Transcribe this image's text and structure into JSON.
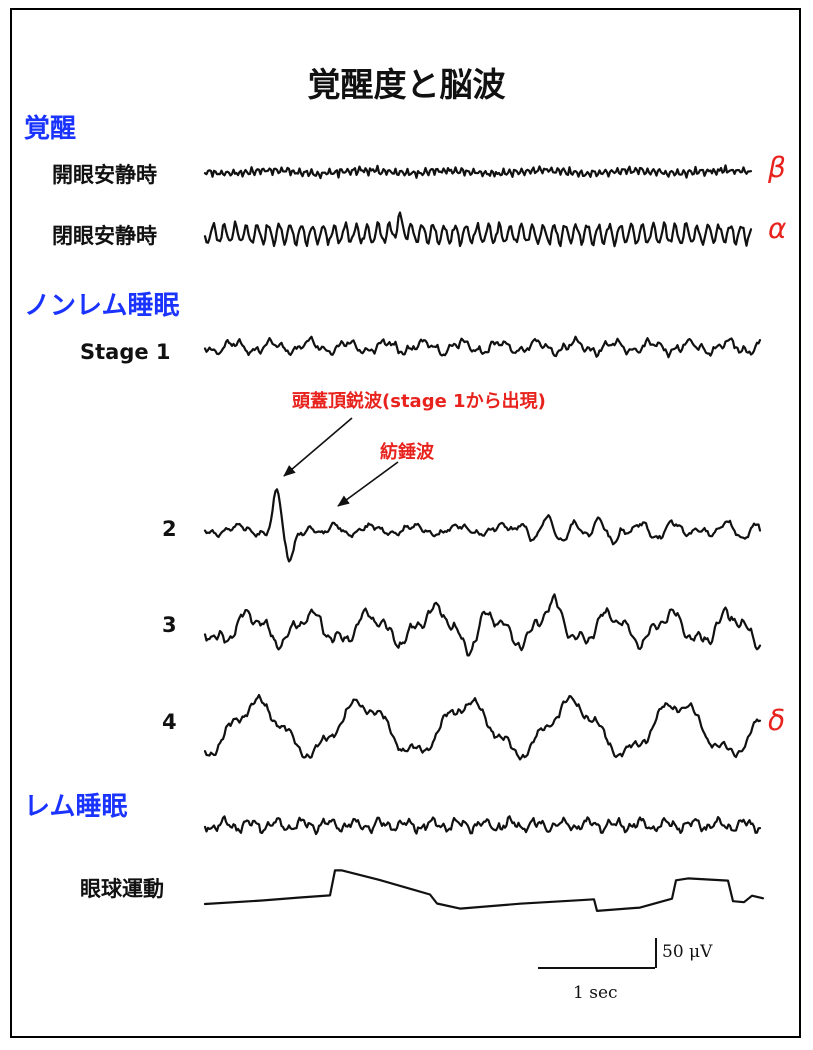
{
  "title": "覚醒度と脳波",
  "colors": {
    "section": "#1a33ff",
    "accent": "#e8231e",
    "trace": "#111111"
  },
  "sections": {
    "awake": "覚醒",
    "nrem": "ノンレム睡眠",
    "rem": "レム睡眠"
  },
  "rows": {
    "eyes_open": {
      "label": "開眼安静時",
      "wave": "β"
    },
    "eyes_closed": {
      "label": "閉眼安静時",
      "wave": "α"
    },
    "stage1": {
      "label": "Stage 1"
    },
    "stage2": {
      "label": "2"
    },
    "stage3": {
      "label": "3"
    },
    "stage4": {
      "label": "4",
      "wave": "δ"
    },
    "eye_movement": {
      "label": "眼球運動"
    }
  },
  "annotations": {
    "vertex_wave": "頭蓋頂鋭波(stage 1から出現)",
    "spindle": "紡錘波"
  },
  "scale_bar": {
    "amplitude": "50 μV",
    "time": "1 sec"
  }
}
